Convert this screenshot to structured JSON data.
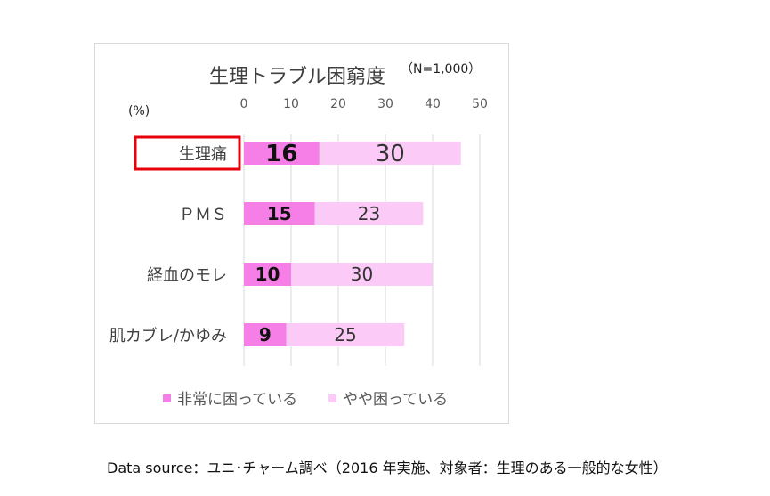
{
  "chart_data": {
    "type": "bar",
    "stacked": true,
    "orientation": "horizontal",
    "title": "生理トラブル困窮度",
    "subtitle": "（N=1,000）",
    "unit_label": "(%)",
    "categories": [
      "生理痛",
      "ＰＭＳ",
      "経血のモレ",
      "肌カブレ/かゆみ"
    ],
    "series": [
      {
        "name": "非常に困っている",
        "values": [
          16,
          15,
          10,
          9
        ],
        "color": "#f57fe6"
      },
      {
        "name": "やや困っている",
        "values": [
          30,
          23,
          30,
          25
        ],
        "color": "#fccaf7"
      }
    ],
    "xlim": [
      0,
      50
    ],
    "xticks": [
      0,
      10,
      20,
      30,
      40,
      50
    ],
    "grid": true,
    "legend_position": "bottom",
    "highlight_category": "生理痛",
    "highlight_color": "#e8000b"
  },
  "source_note": "Data source：ユニ･チャーム調べ（2016 年実施、対象者：生理のある一般的な女性）"
}
